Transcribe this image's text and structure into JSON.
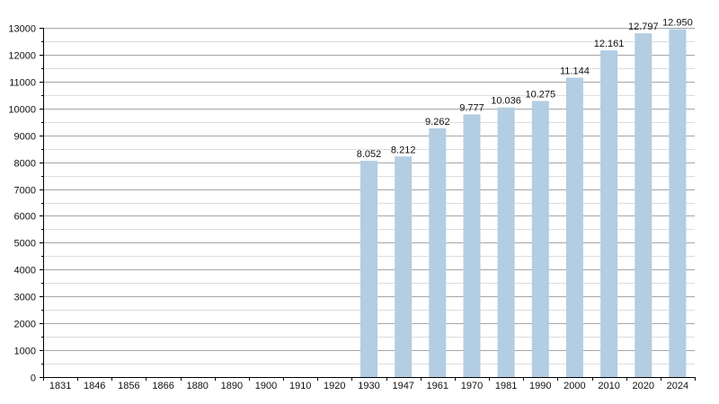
{
  "chart_data": {
    "type": "bar",
    "title": "",
    "xlabel": "",
    "ylabel": "",
    "categories": [
      "1831",
      "1846",
      "1856",
      "1866",
      "1880",
      "1890",
      "1900",
      "1910",
      "1920",
      "1930",
      "1947",
      "1961",
      "1970",
      "1981",
      "1990",
      "2000",
      "2010",
      "2020",
      "2024"
    ],
    "values": [
      null,
      null,
      null,
      null,
      null,
      null,
      null,
      null,
      null,
      8052,
      8212,
      9262,
      9777,
      10036,
      10275,
      11144,
      12161,
      12797,
      12950
    ],
    "data_labels": [
      "",
      "",
      "",
      "",
      "",
      "",
      "",
      "",
      "",
      "8.052",
      "8.212",
      "9.262",
      "9.777",
      "10.036",
      "10.275",
      "11.144",
      "12.161",
      "12.797",
      "12.950"
    ],
    "ylim": [
      0,
      13000
    ],
    "yticks": [
      0,
      1000,
      2000,
      3000,
      4000,
      5000,
      6000,
      7000,
      8000,
      9000,
      10000,
      11000,
      12000,
      13000
    ],
    "grid": true,
    "legend": "none",
    "colors": {
      "bar": "#b3cde3",
      "bar_edge": "#a5c3de",
      "grid_major": "#a6a6a6",
      "grid_minor": "#dddddd",
      "axis": "#000000",
      "text": "#111111"
    }
  }
}
